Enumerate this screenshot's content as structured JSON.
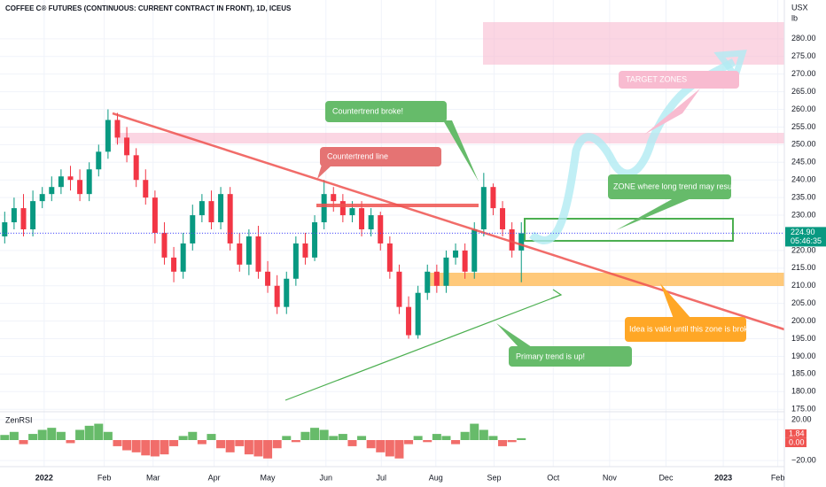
{
  "chart_data": {
    "type": "candlestick",
    "title": "COFFEE C® FUTURES (CONTINUOUS: CURRENT CONTRACT IN FRONT), 1D, ICEUS",
    "currency": "USX",
    "unit": "lb",
    "categories": [
      null,
      null,
      null,
      null,
      null,
      null,
      null,
      null,
      null,
      null,
      null,
      null,
      null,
      null,
      null,
      null,
      null,
      null,
      null,
      null,
      null,
      null,
      null,
      null,
      null,
      null,
      null,
      null,
      null,
      null,
      null,
      null,
      null,
      null,
      null,
      null,
      null,
      null,
      null,
      null,
      null,
      null,
      null,
      null,
      null,
      null,
      null,
      null,
      null,
      null,
      null,
      null,
      null,
      null,
      null,
      null
    ],
    "open": [
      224,
      228,
      232,
      226,
      234,
      236,
      238,
      241,
      240,
      236,
      243,
      248,
      257,
      252,
      247,
      240,
      235,
      225,
      218,
      214,
      222,
      230,
      234,
      228,
      236,
      222,
      216,
      224,
      214,
      210,
      204,
      212,
      222,
      218,
      228,
      236,
      234,
      230,
      232,
      226,
      230,
      222,
      214,
      204,
      196,
      208,
      214,
      210,
      218,
      220,
      214,
      226,
      238,
      232,
      226,
      220
    ],
    "high": [
      231,
      235,
      236,
      237,
      238,
      241,
      243,
      244,
      243,
      245,
      250,
      260,
      259,
      255,
      249,
      243,
      237,
      228,
      221,
      225,
      233,
      236,
      237,
      238,
      238,
      225,
      226,
      227,
      217,
      213,
      214,
      224,
      225,
      230,
      240,
      238,
      236,
      234,
      234,
      232,
      231,
      224,
      216,
      207,
      210,
      216,
      216,
      220,
      222,
      222,
      228,
      242,
      239,
      234,
      228,
      228
    ],
    "low": [
      222,
      226,
      224,
      224,
      232,
      234,
      236,
      237,
      234,
      234,
      241,
      246,
      250,
      245,
      238,
      233,
      222,
      216,
      211,
      212,
      220,
      228,
      226,
      226,
      220,
      214,
      213,
      212,
      208,
      202,
      202,
      210,
      216,
      217,
      226,
      231,
      228,
      228,
      224,
      224,
      220,
      212,
      202,
      195,
      195,
      206,
      208,
      208,
      216,
      212,
      212,
      224,
      230,
      224,
      218,
      211
    ],
    "close": [
      228,
      232,
      226,
      234,
      236,
      238,
      241,
      240,
      236,
      243,
      248,
      257,
      252,
      247,
      240,
      235,
      225,
      218,
      214,
      222,
      230,
      234,
      228,
      236,
      222,
      216,
      224,
      214,
      210,
      204,
      212,
      222,
      218,
      228,
      236,
      234,
      230,
      232,
      226,
      230,
      222,
      214,
      204,
      196,
      208,
      214,
      210,
      218,
      220,
      214,
      226,
      238,
      232,
      226,
      220,
      224.9
    ],
    "up_color": "#089981",
    "down_color": "#f23645",
    "last_price": {
      "value": 224.9,
      "label": "224.90",
      "timer": "05:46:35"
    },
    "xlim": [
      -0.5,
      83
    ],
    "xticks": [
      {
        "value": 4.2,
        "label": "2022"
      },
      {
        "value": 10.6,
        "label": "Feb"
      },
      {
        "value": 15.8,
        "label": "Mar"
      },
      {
        "value": 22.3,
        "label": "Apr"
      },
      {
        "value": 28,
        "label": "May"
      },
      {
        "value": 34.2,
        "label": "Jun"
      },
      {
        "value": 40.1,
        "label": "Jul"
      },
      {
        "value": 45.9,
        "label": "Aug"
      },
      {
        "value": 52.1,
        "label": "Sep"
      },
      {
        "value": 58.4,
        "label": "Oct"
      },
      {
        "value": 64.4,
        "label": "Nov"
      },
      {
        "value": 70.4,
        "label": "Dec"
      },
      {
        "value": 76.5,
        "label": "2023"
      },
      {
        "value": 82.3,
        "label": "Feb"
      }
    ],
    "ylim": [
      174.3,
      291
    ],
    "yticks": [
      {
        "value": 175,
        "label": "175.00"
      },
      {
        "value": 180,
        "label": "180.00"
      },
      {
        "value": 185,
        "label": "185.00"
      },
      {
        "value": 190,
        "label": "190.00"
      },
      {
        "value": 195,
        "label": "195.00"
      },
      {
        "value": 200,
        "label": "200.00"
      },
      {
        "value": 205,
        "label": "205.00"
      },
      {
        "value": 210,
        "label": "210.00"
      },
      {
        "value": 215,
        "label": "215.00"
      },
      {
        "value": 220,
        "label": "220.00"
      },
      {
        "value": 225,
        "label": "225.00"
      },
      {
        "value": 230,
        "label": "230.00"
      },
      {
        "value": 235,
        "label": "235.00"
      },
      {
        "value": 240,
        "label": "240.00"
      },
      {
        "value": 245,
        "label": "245.00"
      },
      {
        "value": 250,
        "label": "250.00"
      },
      {
        "value": 255,
        "label": "255.00"
      },
      {
        "value": 260,
        "label": "260.00"
      },
      {
        "value": 265,
        "label": "265.00"
      },
      {
        "value": 270,
        "label": "270.00"
      },
      {
        "value": 275,
        "label": "275.00"
      },
      {
        "value": 280,
        "label": "280.00"
      }
    ],
    "annotations": [
      "Countertrend broke!",
      "Countertrend line",
      "ZONE where long trend may resume.",
      "TARGET ZONES",
      "Idea is valid until this zone is broken!",
      "Primary trend is up!"
    ],
    "indicator": {
      "name": "ZenRSI",
      "values": [
        5,
        8,
        -4,
        6,
        10,
        12,
        8,
        -3,
        10,
        14,
        16,
        8,
        -6,
        -10,
        -12,
        -15,
        -16,
        -14,
        -6,
        4,
        8,
        -4,
        6,
        -8,
        -12,
        -6,
        -14,
        -16,
        -18,
        -8,
        4,
        -2,
        8,
        12,
        10,
        4,
        6,
        -6,
        4,
        -8,
        -12,
        -16,
        -18,
        -4,
        4,
        -2,
        6,
        4,
        -4,
        8,
        16,
        10,
        4,
        -6,
        -2,
        1.84
      ],
      "ylim": [
        -26,
        26
      ],
      "yticks": [
        {
          "value": 20,
          "label": "20.00"
        },
        {
          "value": -20,
          "label": "−20.00"
        }
      ],
      "current": [
        {
          "value": 1.84,
          "label": "1.84"
        },
        {
          "value": 0,
          "label": "0.00"
        }
      ]
    }
  }
}
